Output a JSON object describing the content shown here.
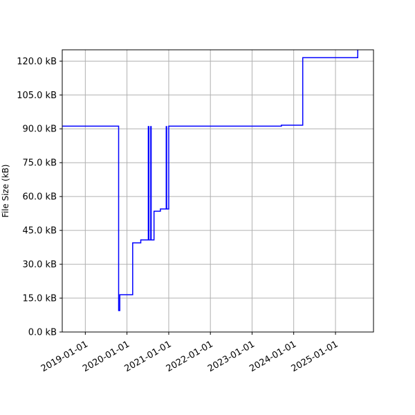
{
  "chart_data": {
    "type": "line",
    "title": "",
    "xlabel": "",
    "ylabel": "File Size (kB)",
    "grid": true,
    "legend": "none",
    "line_color": "#0000ff",
    "x_axis": "date",
    "xlim": [
      "2018-06-13",
      "2025-11-30"
    ],
    "ylim": [
      0,
      125
    ],
    "yticks": [
      0,
      15,
      30,
      45,
      60,
      75,
      90,
      105,
      120
    ],
    "ytick_labels": [
      "0.0 kB",
      "15.0 kB",
      "30.0 kB",
      "45.0 kB",
      "60.0 kB",
      "75.0 kB",
      "90.0 kB",
      "105.0 kB",
      "120.0 kB"
    ],
    "xticks": [
      "2019-01-01",
      "2020-01-01",
      "2021-01-01",
      "2022-01-01",
      "2023-01-01",
      "2024-01-01",
      "2025-01-01"
    ],
    "xtick_labels": [
      "2019-01-01",
      "2020-01-01",
      "2021-01-01",
      "2022-01-01",
      "2023-01-01",
      "2024-01-01",
      "2025-01-01"
    ],
    "series": [
      {
        "step": "post",
        "points": [
          {
            "x": "2018-06-13",
            "y": 91.2
          },
          {
            "x": "2019-10-20",
            "y": 9.5
          },
          {
            "x": "2019-10-30",
            "y": 16.5
          },
          {
            "x": "2020-02-20",
            "y": 39.5
          },
          {
            "x": "2020-05-01",
            "y": 40.8
          },
          {
            "x": "2020-07-06",
            "y": 91.0
          },
          {
            "x": "2020-07-11",
            "y": 40.8
          },
          {
            "x": "2020-07-27",
            "y": 91.0
          },
          {
            "x": "2020-07-31",
            "y": 40.8
          },
          {
            "x": "2020-08-25",
            "y": 53.5
          },
          {
            "x": "2020-10-20",
            "y": 54.5
          },
          {
            "x": "2020-12-10",
            "y": 91.0
          },
          {
            "x": "2020-12-14",
            "y": 54.5
          },
          {
            "x": "2021-01-01",
            "y": 91.2
          },
          {
            "x": "2023-09-15",
            "y": 91.6
          },
          {
            "x": "2024-03-20",
            "y": 121.5
          },
          {
            "x": "2025-07-15",
            "y": 125.0
          }
        ]
      }
    ]
  }
}
